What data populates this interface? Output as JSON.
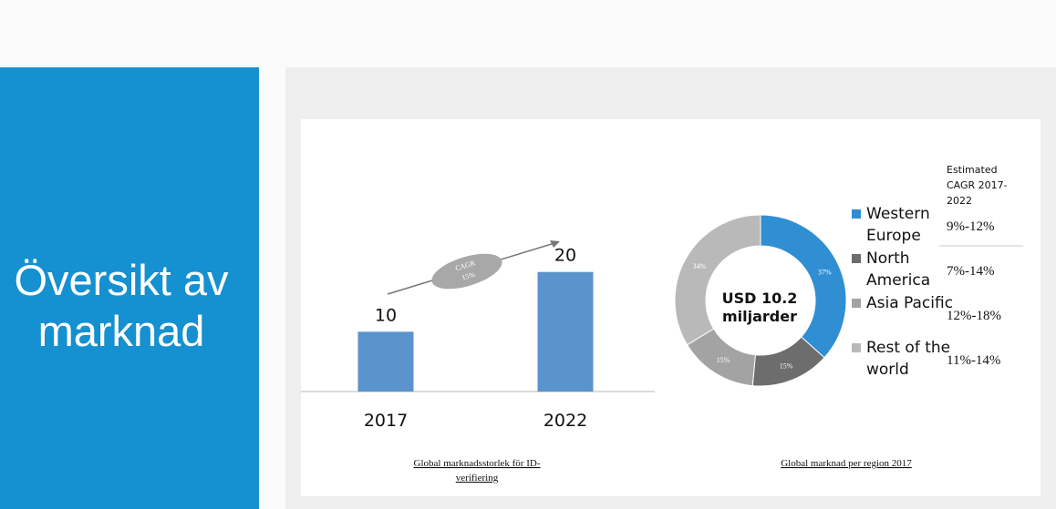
{
  "slide": {
    "title": "Översikt av\nmarknad"
  },
  "colors": {
    "sidebar": "#1590d0",
    "bar": "#5b93cc",
    "western_europe": "#2f8fd2",
    "north_america": "#6d6d6d",
    "asia_pacific": "#a3a3a3",
    "rest_of_world": "#b9b9b9"
  },
  "chart_data": [
    {
      "type": "bar",
      "categories": [
        "2017",
        "2022"
      ],
      "values": [
        10,
        20
      ],
      "ylim": [
        0,
        23
      ],
      "annotation": {
        "text": "CAGR",
        "value": "15%"
      },
      "caption": "Global marknadsstorlek för ID-\nverifiering"
    },
    {
      "type": "pie",
      "labels": [
        "Western Europe",
        "North America",
        "Asia Pacific",
        "Rest of the world"
      ],
      "legend_lines": [
        [
          "Western",
          "Europe"
        ],
        [
          "North",
          "America"
        ],
        [
          "Asia Pacific"
        ],
        [
          "Rest of the",
          "world"
        ]
      ],
      "values": [
        37,
        15,
        15,
        34
      ],
      "slice_labels": [
        "37%",
        "15%",
        "15%",
        "34%"
      ],
      "center_text": [
        "USD 10.2",
        "miljarder"
      ],
      "caption": "Global marknad per region 2017",
      "cagr_header": [
        "Estimated",
        "CAGR 2017-",
        "2022"
      ],
      "cagr": [
        "9%-12%",
        "7%-14%",
        "12%-18%",
        "11%-14%"
      ]
    }
  ]
}
